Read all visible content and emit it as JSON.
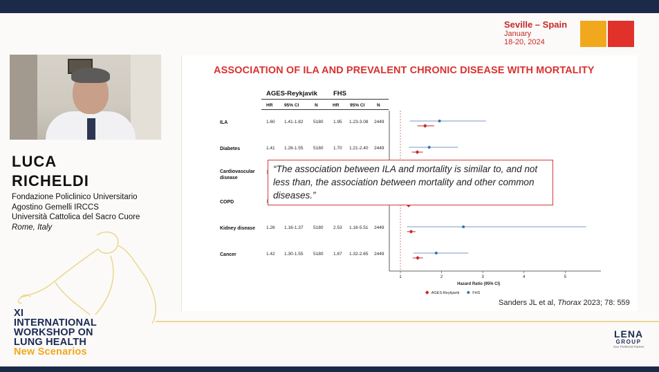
{
  "event": {
    "city": "Seville – Spain",
    "month": "January",
    "dates": "18-20, 2024",
    "colors": {
      "orange": "#f2a81d",
      "red": "#e0322b"
    }
  },
  "speaker": {
    "first_name": "LUCA",
    "last_name": "RICHELDI",
    "affiliation_lines": [
      "Fondazione Policlinico Universitario",
      "Agostino Gemelli IRCCS",
      "Università Cattolica del Sacro Cuore"
    ],
    "location": "Rome, Italy"
  },
  "workshop": {
    "lines": [
      "XI",
      "INTERNATIONAL",
      "WORKSHOP ON",
      "LUNG HEALTH"
    ],
    "subtitle": "New Scenarios"
  },
  "slide": {
    "title": "ASSOCIATION OF ILA AND PREVALENT CHRONIC DISEASE WITH MORTALITY",
    "groups": [
      "AGES-Reykjavik",
      "FHS"
    ],
    "headers": [
      "HR",
      "95% CI",
      "N",
      "HR",
      "95% CI",
      "N"
    ],
    "rows": [
      {
        "label": "ILA",
        "ages_hr": "1.60",
        "ages_ci": "1.41-1.82",
        "ages_n": "5180",
        "fhs_hr": "1.95",
        "fhs_ci": "1.23-3.08",
        "fhs_n": "2449"
      },
      {
        "label": "Diabetes",
        "ages_hr": "1.41",
        "ages_ci": "1.28-1.55",
        "ages_n": "5180",
        "fhs_hr": "1.70",
        "fhs_ci": "1.21-2.40",
        "fhs_n": "2449"
      },
      {
        "label": "Cardiovascular disease",
        "ages_hr": "1",
        "ages_ci": "",
        "ages_n": "",
        "fhs_hr": "",
        "fhs_ci": "",
        "fhs_n": ""
      },
      {
        "label": "COPD",
        "ages_hr": "1",
        "ages_ci": "",
        "ages_n": "",
        "fhs_hr": "",
        "fhs_ci": "",
        "fhs_n": ""
      },
      {
        "label": "Kidney disease",
        "ages_hr": "1.26",
        "ages_ci": "1.16-1.37",
        "ages_n": "5180",
        "fhs_hr": "2.53",
        "fhs_ci": "1.16-5.51",
        "fhs_n": "2449"
      },
      {
        "label": "Cancer",
        "ages_hr": "1.42",
        "ages_ci": "1.30-1.55",
        "ages_n": "5180",
        "fhs_hr": "1.87",
        "fhs_ci": "1.32-2.65",
        "fhs_n": "2449"
      }
    ],
    "quote": "“The association between ILA and mortality is similar to, and not less than, the association between mortality and other common diseases.”",
    "reference_authors": "Sanders JL et al, ",
    "reference_journal": "Thorax",
    "reference_rest": " 2023; 78: 559"
  },
  "chart_data": {
    "type": "scatter",
    "xlabel": "Hazard Ratio (95% CI)",
    "xlim": [
      1,
      5.7
    ],
    "ticks": [
      "1",
      "2",
      "3",
      "4",
      "5"
    ],
    "categories": [
      "ILA",
      "Diabetes",
      "Cardiovascular disease",
      "COPD",
      "Kidney disease",
      "Cancer"
    ],
    "series": [
      {
        "name": "AGES-Reykjavik",
        "color": "#c62828",
        "hr": [
          1.6,
          1.41,
          null,
          1.2,
          1.26,
          1.42
        ],
        "lo": [
          1.41,
          1.28,
          null,
          null,
          1.16,
          1.3
        ],
        "hi": [
          1.82,
          1.55,
          null,
          null,
          1.37,
          1.55
        ]
      },
      {
        "name": "FHS",
        "color": "#3b6fb0",
        "hr": [
          1.95,
          1.7,
          null,
          null,
          2.53,
          1.87
        ],
        "lo": [
          1.23,
          1.21,
          null,
          null,
          1.16,
          1.32
        ],
        "hi": [
          3.08,
          2.4,
          null,
          null,
          5.51,
          2.65
        ]
      }
    ]
  },
  "branding": {
    "logo_text": "LENA",
    "logo_sub": "GROUP",
    "tagline": "Your Preferred Partner"
  }
}
